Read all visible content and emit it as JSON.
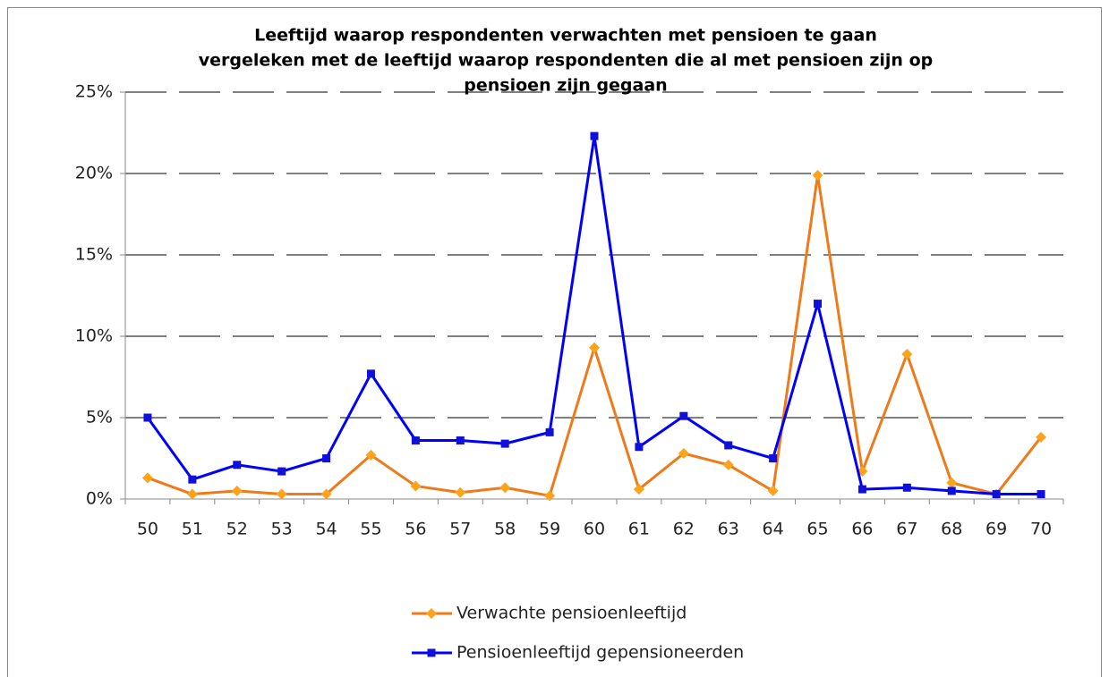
{
  "chart_data": {
    "type": "line",
    "title": [
      "Leeftijd waarop respondenten verwachten met pensioen te gaan",
      "vergeleken met de leeftijd waarop respondenten die al met pensioen zijn op",
      "pensioen zijn gegaan"
    ],
    "categories": [
      "50",
      "51",
      "52",
      "53",
      "54",
      "55",
      "56",
      "57",
      "58",
      "59",
      "60",
      "61",
      "62",
      "63",
      "64",
      "65",
      "66",
      "67",
      "68",
      "69",
      "70"
    ],
    "series": [
      {
        "name": "Verwachte pensioenleeftijd",
        "color": "#ef7a1a",
        "marker_color": "#ffa31a",
        "marker": "diamond",
        "values": [
          1.3,
          0.3,
          0.5,
          0.3,
          0.3,
          2.7,
          0.8,
          0.4,
          0.7,
          0.2,
          9.3,
          0.6,
          2.8,
          2.1,
          0.5,
          19.9,
          1.7,
          8.9,
          1.0,
          0.3,
          3.8
        ]
      },
      {
        "name": "Pensioenleeftijd gepensioneerden",
        "color": "#0000ff",
        "marker_color": "#1010dd",
        "marker": "square",
        "values": [
          5.0,
          1.2,
          2.1,
          1.7,
          2.5,
          7.7,
          3.6,
          3.6,
          3.4,
          4.1,
          22.3,
          3.2,
          5.1,
          3.3,
          2.5,
          12.0,
          0.6,
          0.7,
          0.5,
          0.3,
          0.3
        ]
      }
    ],
    "ylim": [
      0,
      25
    ],
    "yticks": [
      {
        "value": 0,
        "label": "0%"
      },
      {
        "value": 5,
        "label": "5%"
      },
      {
        "value": 10,
        "label": "10%"
      },
      {
        "value": 15,
        "label": "15%"
      },
      {
        "value": 20,
        "label": "20%"
      },
      {
        "value": 25,
        "label": "25%"
      }
    ],
    "grid": true,
    "legend": "bottom"
  }
}
